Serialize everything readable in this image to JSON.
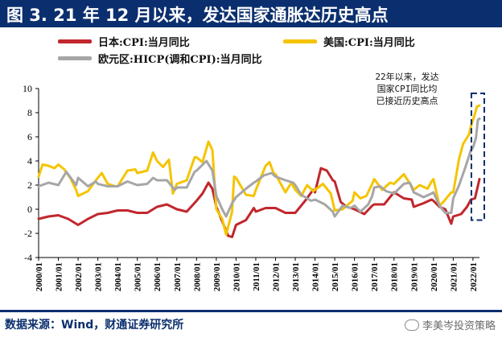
{
  "header": {
    "title": "图 3. 21 年 12 月以来，发达国家通胀达历史高点",
    "background": "#0b2f6e"
  },
  "legend": [
    {
      "label": "日本:CPI:当月同比",
      "color": "#c1272d"
    },
    {
      "label": "美国:CPI:当月同比",
      "color": "#f5c400"
    },
    {
      "label": "欧元区:HICP(调和CPI):当月同比",
      "color": "#a6a6a6"
    }
  ],
  "annotation": [
    "22年以来，发达",
    "国家CPI同比均",
    "已接近历史高点"
  ],
  "source": "数据来源：Wind，财通证券研究所",
  "watermark": "李美岑投资策略",
  "chart_data": {
    "type": "line",
    "ylim": [
      -4,
      10
    ],
    "yticks": [
      -4,
      -2,
      0,
      2,
      4,
      6,
      8,
      10
    ],
    "x_tick_labels": [
      "2000/01",
      "2001/01",
      "2002/01",
      "2003/01",
      "2004/01",
      "2005/01",
      "2006/01",
      "2007/01",
      "2008/01",
      "2009/01",
      "2010/01",
      "2011/01",
      "2012/01",
      "2013/01",
      "2014/01",
      "2015/01",
      "2016/01",
      "2017/01",
      "2018/01",
      "2019/01",
      "2020/01",
      "2021/01",
      "2022/01"
    ],
    "x_start": 2000.0,
    "x_end": 2022.33,
    "highlight_box": {
      "x0": 2021.92,
      "x1": 2022.33,
      "y0": -0.9,
      "y1": 9.6
    },
    "series": [
      {
        "name": "日本:CPI:当月同比",
        "color": "#c1272d",
        "points": [
          [
            2000.0,
            -0.8
          ],
          [
            2000.5,
            -0.6
          ],
          [
            2001.0,
            -0.5
          ],
          [
            2001.5,
            -0.8
          ],
          [
            2002.0,
            -1.3
          ],
          [
            2002.5,
            -0.8
          ],
          [
            2003.0,
            -0.4
          ],
          [
            2003.5,
            -0.3
          ],
          [
            2004.0,
            -0.1
          ],
          [
            2004.5,
            -0.1
          ],
          [
            2005.0,
            -0.3
          ],
          [
            2005.5,
            -0.3
          ],
          [
            2006.0,
            0.2
          ],
          [
            2006.5,
            0.4
          ],
          [
            2007.0,
            0.0
          ],
          [
            2007.5,
            -0.2
          ],
          [
            2008.0,
            0.7
          ],
          [
            2008.3,
            1.3
          ],
          [
            2008.6,
            2.2
          ],
          [
            2008.8,
            1.7
          ],
          [
            2009.0,
            0.2
          ],
          [
            2009.3,
            -1.0
          ],
          [
            2009.6,
            -2.2
          ],
          [
            2009.8,
            -2.3
          ],
          [
            2010.0,
            -1.3
          ],
          [
            2010.5,
            -0.9
          ],
          [
            2010.9,
            0.1
          ],
          [
            2011.0,
            -0.2
          ],
          [
            2011.5,
            0.1
          ],
          [
            2012.0,
            0.1
          ],
          [
            2012.5,
            -0.3
          ],
          [
            2013.0,
            -0.3
          ],
          [
            2013.5,
            0.7
          ],
          [
            2013.9,
            1.6
          ],
          [
            2014.0,
            1.4
          ],
          [
            2014.3,
            3.4
          ],
          [
            2014.6,
            3.2
          ],
          [
            2014.9,
            2.4
          ],
          [
            2015.0,
            2.3
          ],
          [
            2015.3,
            0.6
          ],
          [
            2015.6,
            0.2
          ],
          [
            2016.0,
            0.0
          ],
          [
            2016.5,
            -0.4
          ],
          [
            2016.9,
            0.3
          ],
          [
            2017.0,
            0.4
          ],
          [
            2017.5,
            0.4
          ],
          [
            2018.0,
            1.4
          ],
          [
            2018.5,
            0.9
          ],
          [
            2018.9,
            0.8
          ],
          [
            2019.0,
            0.2
          ],
          [
            2019.5,
            0.5
          ],
          [
            2019.9,
            0.8
          ],
          [
            2020.0,
            0.7
          ],
          [
            2020.3,
            0.2
          ],
          [
            2020.6,
            0.0
          ],
          [
            2020.9,
            -1.2
          ],
          [
            2021.0,
            -0.6
          ],
          [
            2021.4,
            -0.4
          ],
          [
            2021.7,
            0.2
          ],
          [
            2021.9,
            0.8
          ],
          [
            2022.1,
            0.9
          ],
          [
            2022.33,
            2.5
          ]
        ]
      },
      {
        "name": "美国:CPI:当月同比",
        "color": "#f5c400",
        "points": [
          [
            2000.0,
            2.7
          ],
          [
            2000.2,
            3.7
          ],
          [
            2000.5,
            3.6
          ],
          [
            2000.8,
            3.4
          ],
          [
            2001.0,
            3.7
          ],
          [
            2001.3,
            3.3
          ],
          [
            2001.6,
            2.6
          ],
          [
            2001.9,
            1.6
          ],
          [
            2002.0,
            1.1
          ],
          [
            2002.5,
            1.5
          ],
          [
            2002.9,
            2.4
          ],
          [
            2003.0,
            2.6
          ],
          [
            2003.2,
            3.0
          ],
          [
            2003.5,
            2.1
          ],
          [
            2003.9,
            1.9
          ],
          [
            2004.0,
            1.9
          ],
          [
            2004.5,
            3.2
          ],
          [
            2004.9,
            3.3
          ],
          [
            2005.0,
            3.0
          ],
          [
            2005.5,
            3.2
          ],
          [
            2005.8,
            4.7
          ],
          [
            2006.0,
            4.0
          ],
          [
            2006.3,
            3.5
          ],
          [
            2006.6,
            4.1
          ],
          [
            2006.8,
            1.3
          ],
          [
            2007.0,
            2.1
          ],
          [
            2007.5,
            2.4
          ],
          [
            2007.9,
            4.3
          ],
          [
            2008.0,
            4.3
          ],
          [
            2008.3,
            3.9
          ],
          [
            2008.6,
            5.6
          ],
          [
            2008.8,
            4.9
          ],
          [
            2009.0,
            0.0
          ],
          [
            2009.3,
            -0.8
          ],
          [
            2009.5,
            -2.1
          ],
          [
            2009.8,
            -0.2
          ],
          [
            2009.9,
            2.7
          ],
          [
            2010.0,
            2.6
          ],
          [
            2010.5,
            1.2
          ],
          [
            2010.9,
            1.1
          ],
          [
            2011.0,
            1.6
          ],
          [
            2011.5,
            3.6
          ],
          [
            2011.7,
            3.9
          ],
          [
            2011.9,
            3.0
          ],
          [
            2012.0,
            2.9
          ],
          [
            2012.5,
            1.4
          ],
          [
            2012.8,
            2.2
          ],
          [
            2013.0,
            1.6
          ],
          [
            2013.3,
            1.1
          ],
          [
            2013.6,
            2.0
          ],
          [
            2013.9,
            1.5
          ],
          [
            2014.0,
            1.6
          ],
          [
            2014.4,
            2.1
          ],
          [
            2014.8,
            1.3
          ],
          [
            2015.0,
            -0.1
          ],
          [
            2015.4,
            0.0
          ],
          [
            2015.9,
            0.7
          ],
          [
            2016.0,
            1.4
          ],
          [
            2016.3,
            0.9
          ],
          [
            2016.6,
            1.1
          ],
          [
            2016.9,
            2.1
          ],
          [
            2017.0,
            2.5
          ],
          [
            2017.4,
            1.6
          ],
          [
            2017.8,
            2.2
          ],
          [
            2018.0,
            2.1
          ],
          [
            2018.5,
            2.9
          ],
          [
            2018.9,
            1.9
          ],
          [
            2019.0,
            1.6
          ],
          [
            2019.3,
            2.0
          ],
          [
            2019.7,
            1.7
          ],
          [
            2019.9,
            2.3
          ],
          [
            2020.0,
            2.5
          ],
          [
            2020.3,
            0.3
          ],
          [
            2020.5,
            0.6
          ],
          [
            2020.9,
            1.4
          ],
          [
            2021.0,
            1.4
          ],
          [
            2021.3,
            4.2
          ],
          [
            2021.5,
            5.4
          ],
          [
            2021.8,
            6.2
          ],
          [
            2021.92,
            7.0
          ],
          [
            2022.1,
            7.9
          ],
          [
            2022.2,
            8.5
          ],
          [
            2022.33,
            8.6
          ]
        ]
      },
      {
        "name": "欧元区:HICP(调和CPI):当月同比",
        "color": "#a6a6a6",
        "points": [
          [
            2000.0,
            1.9
          ],
          [
            2000.5,
            2.2
          ],
          [
            2001.0,
            2.0
          ],
          [
            2001.4,
            3.1
          ],
          [
            2001.9,
            2.0
          ],
          [
            2002.0,
            2.6
          ],
          [
            2002.5,
            1.9
          ],
          [
            2002.9,
            2.3
          ],
          [
            2003.0,
            2.1
          ],
          [
            2003.5,
            1.9
          ],
          [
            2004.0,
            1.9
          ],
          [
            2004.5,
            2.3
          ],
          [
            2005.0,
            2.0
          ],
          [
            2005.5,
            2.1
          ],
          [
            2005.8,
            2.6
          ],
          [
            2006.0,
            2.4
          ],
          [
            2006.5,
            2.4
          ],
          [
            2006.9,
            1.6
          ],
          [
            2007.0,
            1.8
          ],
          [
            2007.5,
            1.8
          ],
          [
            2007.9,
            3.1
          ],
          [
            2008.0,
            3.2
          ],
          [
            2008.5,
            4.0
          ],
          [
            2008.8,
            3.2
          ],
          [
            2009.0,
            1.1
          ],
          [
            2009.3,
            0.0
          ],
          [
            2009.5,
            -0.6
          ],
          [
            2009.8,
            0.5
          ],
          [
            2010.0,
            1.0
          ],
          [
            2010.5,
            1.7
          ],
          [
            2010.9,
            2.2
          ],
          [
            2011.0,
            2.3
          ],
          [
            2011.4,
            2.8
          ],
          [
            2011.8,
            3.0
          ],
          [
            2012.0,
            2.7
          ],
          [
            2012.5,
            2.4
          ],
          [
            2012.9,
            2.2
          ],
          [
            2013.0,
            2.0
          ],
          [
            2013.3,
            1.2
          ],
          [
            2013.8,
            0.7
          ],
          [
            2014.0,
            0.8
          ],
          [
            2014.5,
            0.4
          ],
          [
            2014.9,
            -0.2
          ],
          [
            2015.0,
            -0.6
          ],
          [
            2015.4,
            0.3
          ],
          [
            2015.8,
            0.1
          ],
          [
            2016.0,
            0.3
          ],
          [
            2016.3,
            -0.2
          ],
          [
            2016.7,
            0.4
          ],
          [
            2016.9,
            1.1
          ],
          [
            2017.0,
            1.8
          ],
          [
            2017.3,
            1.9
          ],
          [
            2017.6,
            1.5
          ],
          [
            2018.0,
            1.3
          ],
          [
            2018.5,
            2.1
          ],
          [
            2018.8,
            2.2
          ],
          [
            2019.0,
            1.4
          ],
          [
            2019.5,
            1.0
          ],
          [
            2019.9,
            1.3
          ],
          [
            2020.0,
            1.4
          ],
          [
            2020.3,
            0.3
          ],
          [
            2020.6,
            -0.3
          ],
          [
            2020.9,
            -0.3
          ],
          [
            2021.0,
            0.9
          ],
          [
            2021.3,
            2.0
          ],
          [
            2021.6,
            3.4
          ],
          [
            2021.9,
            4.9
          ],
          [
            2022.0,
            5.1
          ],
          [
            2022.15,
            5.9
          ],
          [
            2022.25,
            7.4
          ],
          [
            2022.33,
            7.5
          ]
        ]
      }
    ]
  }
}
